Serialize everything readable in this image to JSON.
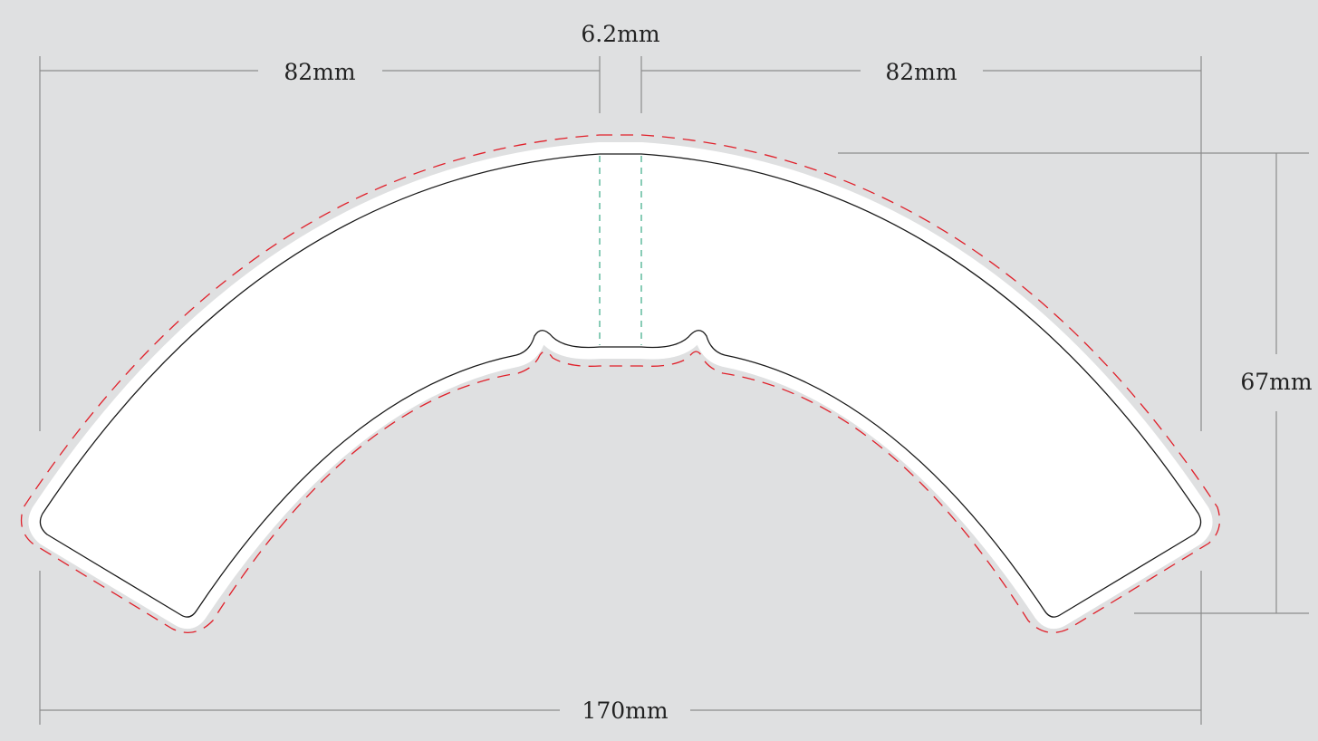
{
  "dimensions": {
    "width_left": "82mm",
    "width_right": "82mm",
    "center_strip": "6.2mm",
    "height": "67mm",
    "total_width": "170mm"
  },
  "colors": {
    "background": "#dfe0e1",
    "dimension_line": "#8c8c8c",
    "cut_line": "#1a1a1a",
    "bleed_line": "#e0202a",
    "fold_line": "#3aaa86",
    "shape_fill": "#ffffff"
  }
}
